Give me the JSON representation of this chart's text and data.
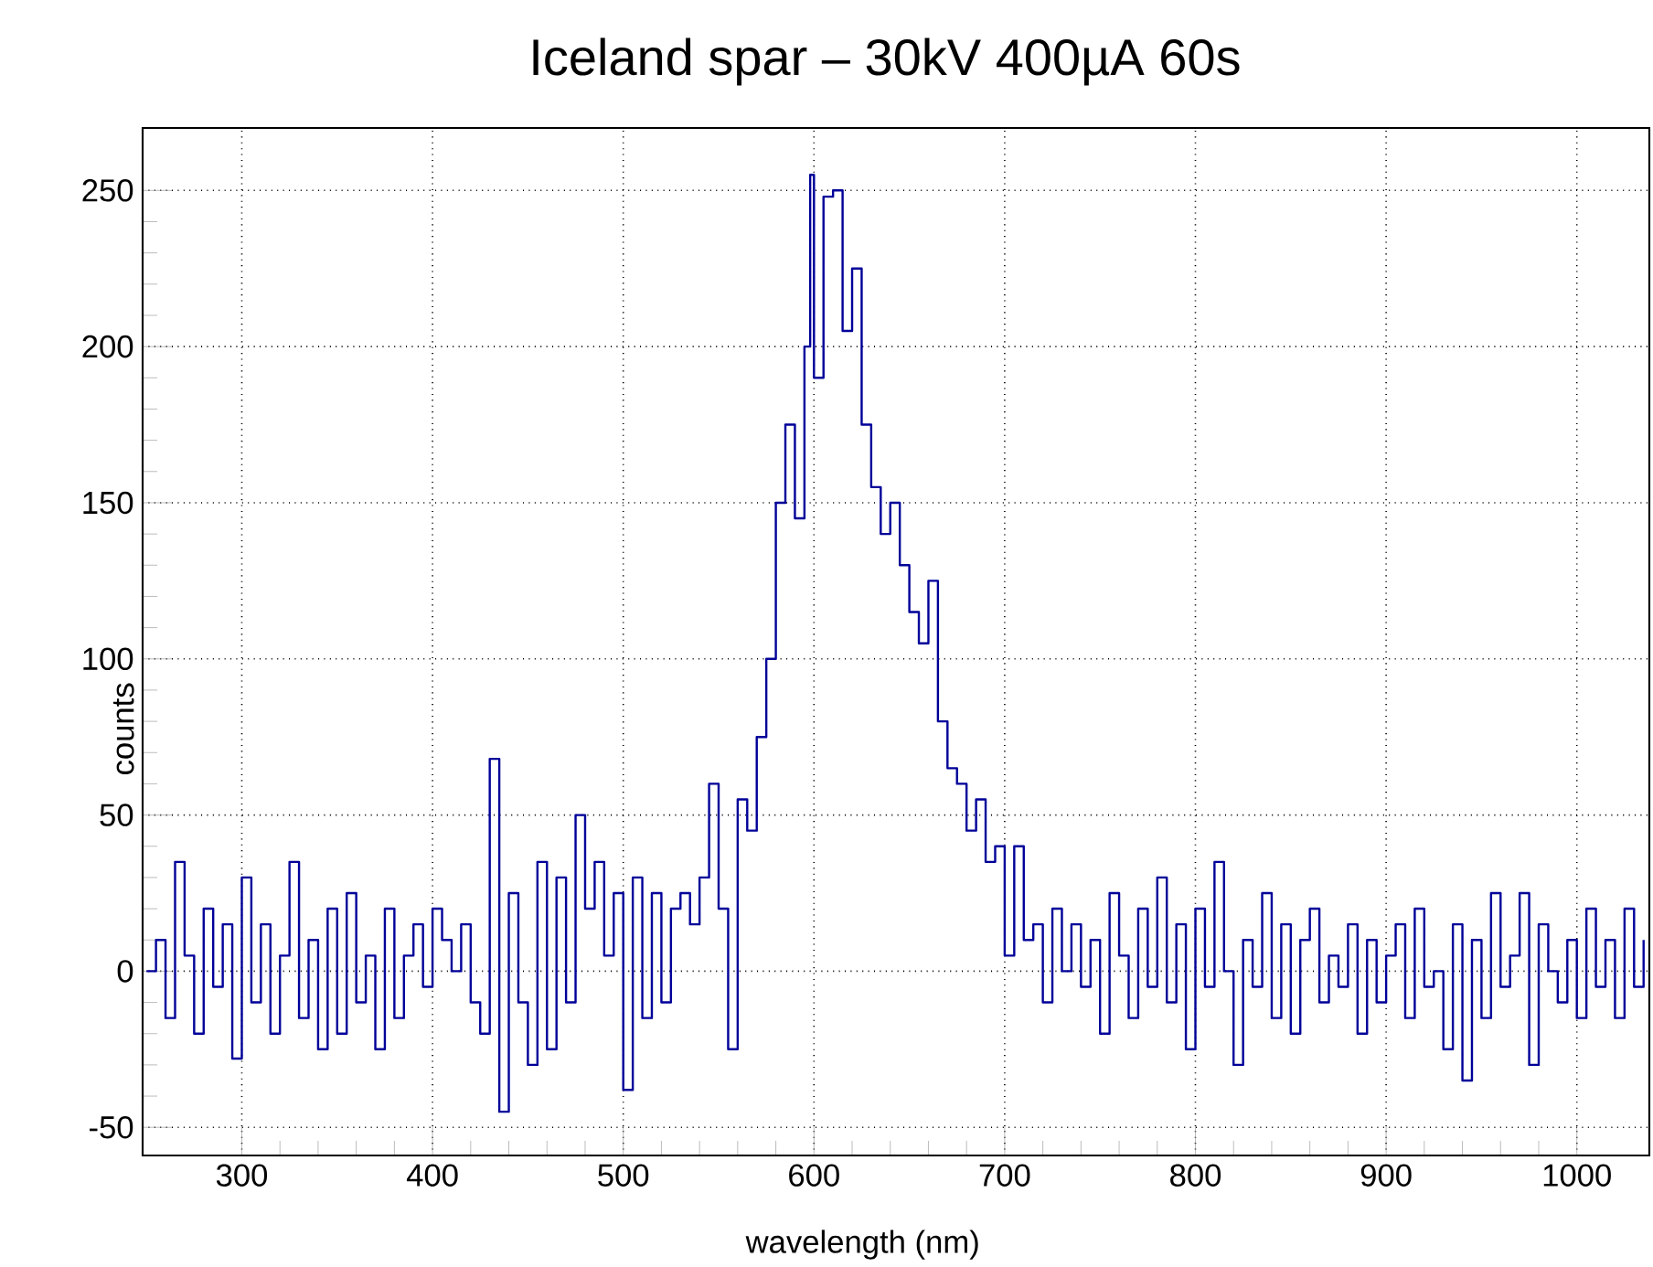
{
  "chart_data": {
    "type": "step",
    "title": "Iceland spar – 30kV 400µA 60s",
    "xlabel": "wavelength (nm)",
    "ylabel": "counts",
    "xlim": [
      248,
      1038
    ],
    "ylim": [
      -59,
      270
    ],
    "xticks": [
      300,
      400,
      500,
      600,
      700,
      800,
      900,
      1000
    ],
    "yticks": [
      -50,
      0,
      50,
      100,
      150,
      200,
      250
    ],
    "grid": true,
    "x": [
      250,
      255,
      260,
      265,
      270,
      275,
      280,
      285,
      290,
      295,
      300,
      305,
      310,
      315,
      320,
      325,
      330,
      335,
      340,
      345,
      350,
      355,
      360,
      365,
      370,
      375,
      380,
      385,
      390,
      395,
      400,
      405,
      410,
      415,
      420,
      425,
      430,
      435,
      440,
      445,
      450,
      455,
      460,
      465,
      470,
      475,
      480,
      485,
      490,
      495,
      500,
      505,
      510,
      515,
      520,
      525,
      530,
      535,
      540,
      545,
      550,
      555,
      560,
      565,
      570,
      575,
      580,
      585,
      590,
      595,
      598,
      600,
      605,
      610,
      615,
      620,
      625,
      630,
      635,
      640,
      645,
      650,
      655,
      660,
      665,
      670,
      675,
      680,
      685,
      690,
      695,
      700,
      705,
      710,
      715,
      720,
      725,
      730,
      735,
      740,
      745,
      750,
      755,
      760,
      765,
      770,
      775,
      780,
      785,
      790,
      795,
      800,
      805,
      810,
      815,
      820,
      825,
      830,
      835,
      840,
      845,
      850,
      855,
      860,
      865,
      870,
      875,
      880,
      885,
      890,
      895,
      900,
      905,
      910,
      915,
      920,
      925,
      930,
      935,
      940,
      945,
      950,
      955,
      960,
      965,
      970,
      975,
      980,
      985,
      990,
      995,
      1000,
      1005,
      1010,
      1015,
      1020,
      1025,
      1030,
      1035
    ],
    "series": [
      {
        "color": "#000099",
        "values": [
          0,
          10,
          -15,
          35,
          5,
          -20,
          20,
          -5,
          15,
          -28,
          30,
          -10,
          15,
          -20,
          5,
          35,
          -15,
          10,
          -25,
          20,
          -20,
          25,
          -10,
          5,
          -25,
          20,
          -15,
          5,
          15,
          -5,
          20,
          10,
          0,
          15,
          -10,
          -20,
          68,
          -45,
          25,
          -10,
          -30,
          35,
          -25,
          30,
          -10,
          50,
          20,
          35,
          5,
          25,
          -38,
          30,
          -15,
          25,
          -10,
          20,
          25,
          15,
          30,
          60,
          20,
          -25,
          55,
          45,
          75,
          100,
          150,
          175,
          145,
          200,
          255,
          190,
          248,
          250,
          205,
          225,
          175,
          155,
          140,
          150,
          130,
          115,
          105,
          125,
          80,
          65,
          60,
          45,
          55,
          35,
          40,
          5,
          40,
          10,
          15,
          -10,
          20,
          0,
          15,
          -5,
          10,
          -20,
          25,
          5,
          -15,
          20,
          -5,
          30,
          -10,
          15,
          -25,
          20,
          -5,
          35,
          0,
          -30,
          10,
          -5,
          25,
          -15,
          15,
          -20,
          10,
          20,
          -10,
          5,
          -5,
          15,
          -20,
          10,
          -10,
          5,
          15,
          -15,
          20,
          -5,
          0,
          -25,
          15,
          -35,
          10,
          -15,
          25,
          -5,
          5,
          25,
          -30,
          15,
          0,
          -10,
          10,
          -15,
          20,
          -5,
          10,
          -15,
          20,
          -5,
          10
        ]
      }
    ]
  }
}
